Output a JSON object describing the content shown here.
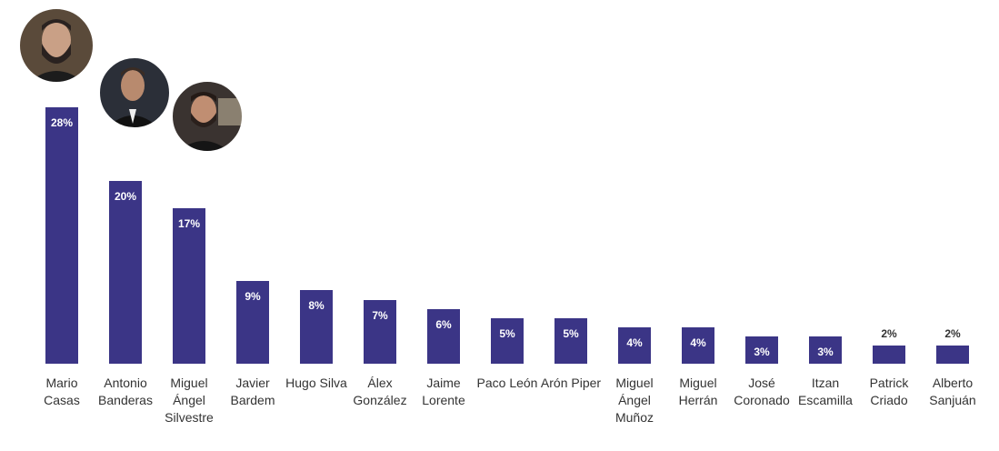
{
  "chart_data": {
    "type": "bar",
    "categories": [
      "Mario Casas",
      "Antonio Banderas",
      "Miguel Ángel Silvestre",
      "Javier Bardem",
      "Hugo Silva",
      "Álex González",
      "Jaime Lorente",
      "Paco León",
      "Arón Piper",
      "Miguel Ángel Muñoz",
      "Miguel Herrán",
      "José Coronado",
      "Itzan Escamilla",
      "Patrick Criado",
      "Alberto Sanjuán"
    ],
    "values": [
      28,
      20,
      17,
      9,
      8,
      7,
      6,
      5,
      5,
      4,
      4,
      3,
      3,
      2,
      2
    ],
    "value_labels": [
      "28%",
      "20%",
      "17%",
      "9%",
      "8%",
      "7%",
      "6%",
      "5%",
      "5%",
      "4%",
      "4%",
      "3%",
      "3%",
      "2%",
      "2%"
    ],
    "color": "#3b3586"
  }
}
